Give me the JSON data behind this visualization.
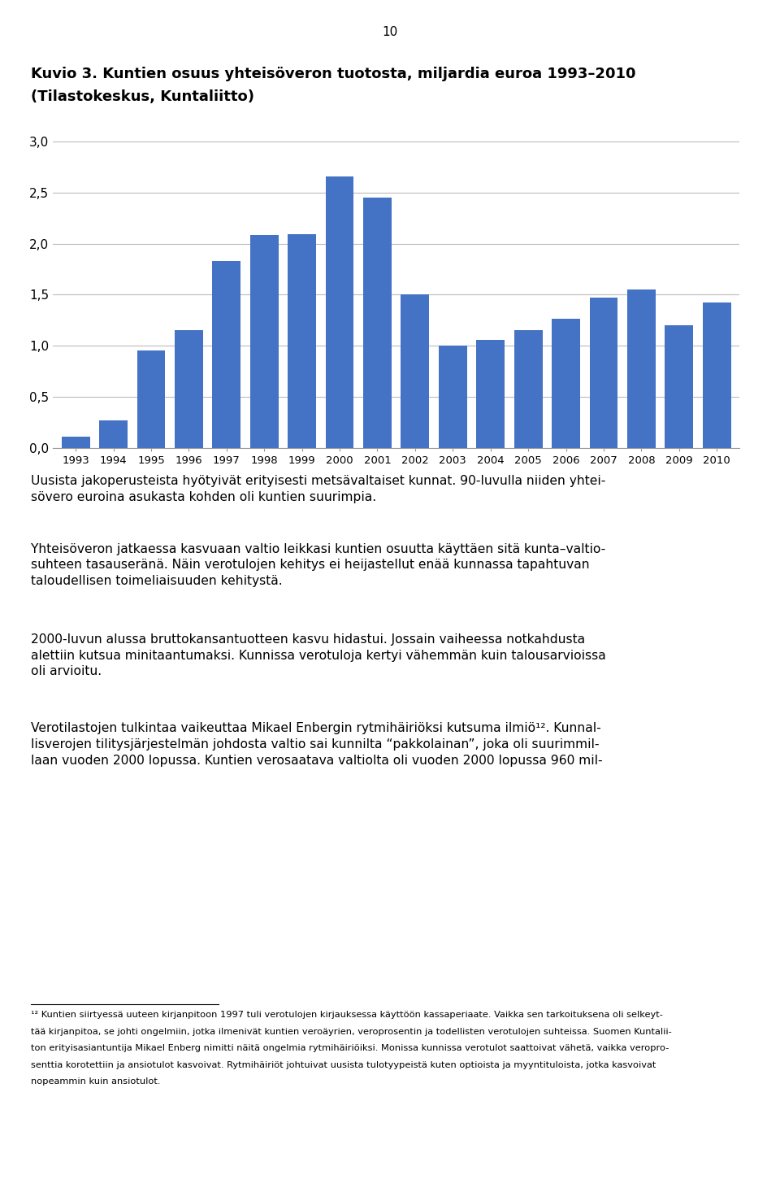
{
  "title_line1": "Kuvio 3. Kuntien osuus yhteisöveron tuotosta, miljardia euroa 1993–2010",
  "title_line2": "(Tilastokeskus, Kuntaliitto)",
  "years": [
    1993,
    1994,
    1995,
    1996,
    1997,
    1998,
    1999,
    2000,
    2001,
    2002,
    2003,
    2004,
    2005,
    2006,
    2007,
    2008,
    2009,
    2010
  ],
  "values": [
    0.11,
    0.27,
    0.95,
    1.15,
    1.83,
    2.08,
    2.09,
    2.66,
    2.45,
    1.5,
    1.0,
    1.06,
    1.15,
    1.26,
    1.47,
    1.55,
    1.2,
    1.42
  ],
  "bar_color": "#4472C4",
  "ylim": [
    0,
    3.0
  ],
  "yticks": [
    0.0,
    0.5,
    1.0,
    1.5,
    2.0,
    2.5,
    3.0
  ],
  "ytick_labels": [
    "0,0",
    "0,5",
    "1,0",
    "1,5",
    "2,0",
    "2,5",
    "3,0"
  ],
  "page_number": "10",
  "para1": "Uusista jakoperusteista hyötyivät erityisesti metsävaltaiset kunnat. 90-luvulla niiden yhtei-\nsövero euroina asukasta kohden oli kuntien suurimpia.",
  "para2": "Yhteisöveron jatkaessa kasvuaan valtio leikkasi kuntien osuutta käyttäen sitä kunta–valtio-\nsuhteen tasauseränä. Näin verotulojen kehitys ei heijastellut enää kunnassa tapahtuvan\ntaloudellisen toimeliaisuuden kehitystä.",
  "para3": "2000-luvun alussa bruttokansantuotteen kasvu hidastui. Jossain vaiheessa notkahdusta\nalettiin kutsua minitaantumaksi. Kunnissa verotuloja kertyi vähemmän kuin talousarvioissa\noli arvioitu.",
  "para4": "Verotilastojen tulkintaa vaikeuttaa Mikael Enbergin rytmihäiriöksi kutsuma ilmiö¹². Kunnal-\nlisverojen tilitysjärjestelmän johdosta valtio sai kunnilta “pakkolainan”, joka oli suurimmil-\nlaan vuoden 2000 lopussa. Kuntien verosaatava valtiolta oli vuoden 2000 lopussa 960 mil-",
  "footnote_lines": [
    "¹² Kuntien siirtyessä uuteen kirjanpitoon 1997 tuli verotulojen kirjauksessa käyttöön kassaperiaate. Vaikka sen tarkoituksena oli selkeyt-",
    "tää kirjanpitoa, se johti ongelmiin, jotka ilmenivät kuntien veroäyrien, veroprosentin ja todellisten verotulojen suhteissa. Suomen Kuntalii-",
    "ton erityisasiantuntija Mikael Enberg nimitti näitä ongelmia rytmihäiriöiksi. Monissa kunnissa verotulot saattoivat vähetä, vaikka veropro-",
    "senttia korotettiin ja ansiotulot kasvoivat. Rytmihäiriöt johtuivat uusista tulotyypeistä kuten optioista ja myyntituloista, jotka kasvoivat",
    "nopeammin kuin ansiotulot."
  ],
  "background_color": "#ffffff",
  "chart_bg": "#ffffff",
  "grid_color": "#bbbbbb",
  "text_color": "#000000"
}
